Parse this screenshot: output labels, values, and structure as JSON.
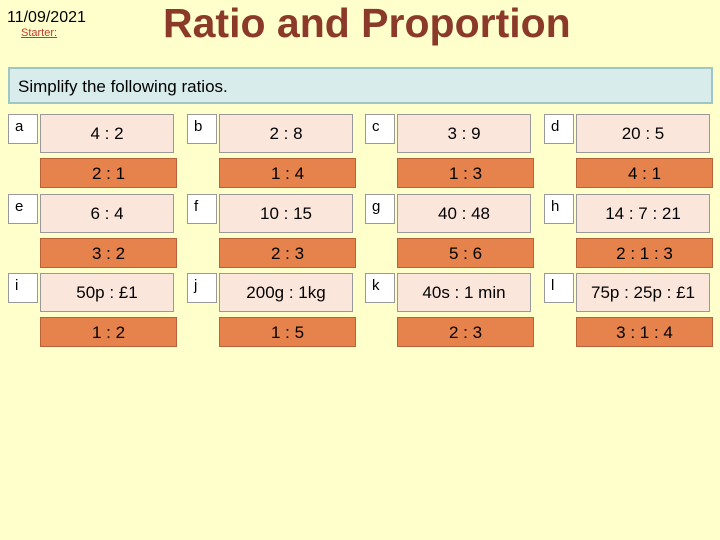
{
  "header": {
    "date": "11/09/2021",
    "starter": "Starter:",
    "title": "Ratio and Proportion"
  },
  "instruction": "Simplify the following ratios.",
  "questions": [
    {
      "label": "a",
      "question": "4 : 2",
      "answer": "2 : 1"
    },
    {
      "label": "b",
      "question": "2 : 8",
      "answer": "1 : 4"
    },
    {
      "label": "c",
      "question": "3 : 9",
      "answer": "1 : 3"
    },
    {
      "label": "d",
      "question": "20 : 5",
      "answer": "4 : 1"
    },
    {
      "label": "e",
      "question": "6 : 4",
      "answer": "3 : 2"
    },
    {
      "label": "f",
      "question": "10 : 15",
      "answer": "2 : 3"
    },
    {
      "label": "g",
      "question": "40 : 48",
      "answer": "5 : 6"
    },
    {
      "label": "h",
      "question": "14 : 7 : 21",
      "answer": "2 : 1 : 3"
    },
    {
      "label": "i",
      "question": "50p : £1",
      "answer": "1 : 2"
    },
    {
      "label": "j",
      "question": "200g : 1kg",
      "answer": "1 : 5"
    },
    {
      "label": "k",
      "question": "40s : 1 min",
      "answer": "2 : 3"
    },
    {
      "label": "l",
      "question": "75p : 25p : £1",
      "answer": "3 : 1 : 4"
    }
  ]
}
